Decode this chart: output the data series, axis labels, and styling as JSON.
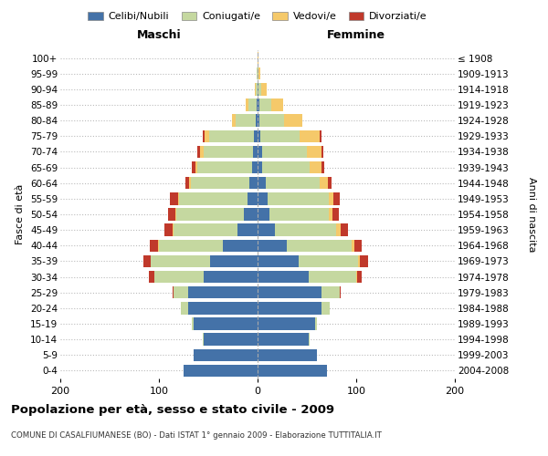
{
  "age_groups": [
    "0-4",
    "5-9",
    "10-14",
    "15-19",
    "20-24",
    "25-29",
    "30-34",
    "35-39",
    "40-44",
    "45-49",
    "50-54",
    "55-59",
    "60-64",
    "65-69",
    "70-74",
    "75-79",
    "80-84",
    "85-89",
    "90-94",
    "95-99",
    "100+"
  ],
  "birth_years": [
    "2004-2008",
    "1999-2003",
    "1994-1998",
    "1989-1993",
    "1984-1988",
    "1979-1983",
    "1974-1978",
    "1969-1973",
    "1964-1968",
    "1959-1963",
    "1954-1958",
    "1949-1953",
    "1944-1948",
    "1939-1943",
    "1934-1938",
    "1929-1933",
    "1924-1928",
    "1919-1923",
    "1914-1918",
    "1909-1913",
    "≤ 1908"
  ],
  "males": {
    "celibi": [
      75,
      65,
      55,
      65,
      70,
      70,
      55,
      48,
      35,
      20,
      14,
      10,
      8,
      6,
      5,
      4,
      2,
      1,
      0,
      0,
      0
    ],
    "coniugati": [
      0,
      0,
      1,
      2,
      8,
      15,
      50,
      60,
      65,
      65,
      68,
      70,
      60,
      55,
      50,
      45,
      20,
      8,
      2,
      1,
      0
    ],
    "vedovi": [
      0,
      0,
      0,
      0,
      0,
      0,
      0,
      0,
      1,
      1,
      1,
      1,
      1,
      2,
      3,
      5,
      4,
      3,
      1,
      0,
      0
    ],
    "divorziati": [
      0,
      0,
      0,
      0,
      0,
      1,
      5,
      8,
      8,
      8,
      8,
      8,
      4,
      4,
      3,
      2,
      0,
      0,
      0,
      0,
      0
    ]
  },
  "females": {
    "nubili": [
      70,
      60,
      52,
      58,
      65,
      65,
      52,
      42,
      30,
      18,
      12,
      10,
      8,
      5,
      5,
      3,
      2,
      2,
      1,
      0,
      0
    ],
    "coniugate": [
      0,
      0,
      1,
      2,
      8,
      18,
      48,
      60,
      65,
      62,
      60,
      62,
      55,
      48,
      45,
      40,
      25,
      12,
      3,
      1,
      0
    ],
    "vedove": [
      0,
      0,
      0,
      0,
      0,
      0,
      1,
      2,
      3,
      4,
      4,
      5,
      8,
      12,
      15,
      20,
      18,
      12,
      5,
      2,
      1
    ],
    "divorziate": [
      0,
      0,
      0,
      0,
      0,
      1,
      5,
      8,
      8,
      8,
      6,
      6,
      4,
      3,
      2,
      2,
      0,
      0,
      0,
      0,
      0
    ]
  },
  "colors": {
    "celibi": "#4472a8",
    "coniugati": "#c5d8a0",
    "vedovi": "#f5c96a",
    "divorziati": "#c0392b"
  },
  "legend_labels": [
    "Celibi/Nubili",
    "Coniugati/e",
    "Vedovi/e",
    "Divorziati/e"
  ],
  "xlim": 200,
  "title": "Popolazione per età, sesso e stato civile - 2009",
  "subtitle": "COMUNE DI CASALFIUMANESE (BO) - Dati ISTAT 1° gennaio 2009 - Elaborazione TUTTITALIA.IT",
  "ylabel_left": "Fasce di età",
  "ylabel_right": "Anni di nascita",
  "xlabel_left": "Maschi",
  "xlabel_right": "Femmine",
  "bg_color": "#ffffff",
  "grid_color": "#cccccc"
}
